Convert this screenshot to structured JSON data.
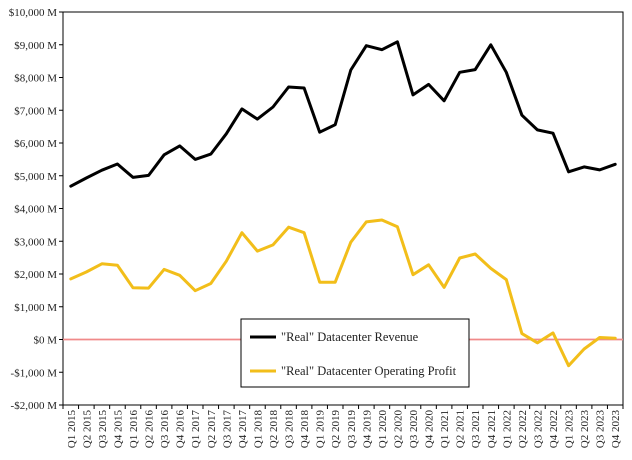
{
  "chart_data": {
    "type": "line",
    "categories": [
      "Q1 2015",
      "Q2 2015",
      "Q3 2015",
      "Q4 2015",
      "Q1 2016",
      "Q2 2016",
      "Q3 2016",
      "Q4 2016",
      "Q1 2017",
      "Q2 2017",
      "Q3 2017",
      "Q4 2017",
      "Q1 2018",
      "Q2 2018",
      "Q3 2018",
      "Q4 2018",
      "Q1 2019",
      "Q2 2019",
      "Q3 2019",
      "Q4 2019",
      "Q1 2020",
      "Q2 2020",
      "Q3 2020",
      "Q4 2020",
      "Q1 2021",
      "Q2 2021",
      "Q3 2021",
      "Q4 2021",
      "Q1 2022",
      "Q2 2022",
      "Q3 2022",
      "Q4 2022",
      "Q1 2023",
      "Q2 2023",
      "Q3 2023",
      "Q4 2023"
    ],
    "series": [
      {
        "name": "\"Real\" Datacenter Revenue",
        "color": "#000000",
        "values": [
          4680,
          4930,
          5170,
          5360,
          4950,
          5010,
          5640,
          5910,
          5500,
          5660,
          6280,
          7040,
          6730,
          7100,
          7710,
          7680,
          6330,
          6560,
          8230,
          8970,
          8850,
          9090,
          7470,
          7790,
          7290,
          8160,
          8240,
          9000,
          8160,
          6850,
          6400,
          6300,
          5120,
          5270,
          5180,
          5350
        ]
      },
      {
        "name": "\"Real\" Datacenter Operating Profit",
        "color": "#F2BE1A",
        "values": [
          1850,
          2060,
          2310,
          2270,
          1580,
          1570,
          2140,
          1960,
          1490,
          1710,
          2390,
          3260,
          2700,
          2890,
          3430,
          3260,
          1750,
          1750,
          2970,
          3590,
          3650,
          3440,
          1980,
          2280,
          1590,
          2490,
          2610,
          2170,
          1830,
          180,
          -100,
          200,
          -800,
          -290,
          60,
          40
        ]
      }
    ],
    "xlabel": "",
    "ylabel": "",
    "ylim": [
      -2000,
      10000
    ],
    "y_ticks": [
      {
        "value": 10000,
        "label": "$10,000 M"
      },
      {
        "value": 9000,
        "label": "$9,000 M"
      },
      {
        "value": 8000,
        "label": "$8,000 M"
      },
      {
        "value": 7000,
        "label": "$7,000 M"
      },
      {
        "value": 6000,
        "label": "$6,000 M"
      },
      {
        "value": 5000,
        "label": "$5,000 M"
      },
      {
        "value": 4000,
        "label": "$4,000 M"
      },
      {
        "value": 3000,
        "label": "$3,000 M"
      },
      {
        "value": 2000,
        "label": "$2,000 M"
      },
      {
        "value": 1000,
        "label": "$1,000 M"
      },
      {
        "value": 0,
        "label": "$0 M"
      },
      {
        "value": -1000,
        "label": "-$1,000 M"
      },
      {
        "value": -2000,
        "label": "-$2,000 M"
      }
    ],
    "zero_line_color": "#F08A8A",
    "grid": false,
    "legend_position": "lower-center"
  }
}
